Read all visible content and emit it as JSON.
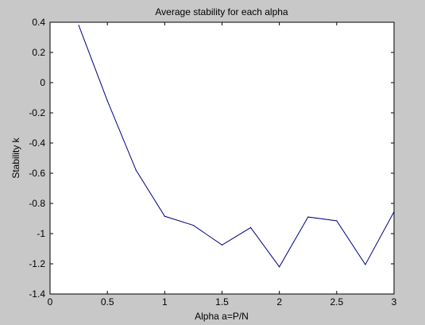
{
  "chart_data": {
    "type": "line",
    "title": "Average stability for each alpha",
    "xlabel": "Alpha a=P/N",
    "ylabel": "Stability k",
    "xlim": [
      0,
      3
    ],
    "ylim": [
      -1.4,
      0.4
    ],
    "xticks": [
      0,
      0.5,
      1,
      1.5,
      2,
      2.5,
      3
    ],
    "xtick_labels": [
      "0",
      "0.5",
      "1",
      "1.5",
      "2",
      "2.5",
      "3"
    ],
    "yticks": [
      0.4,
      0.2,
      0,
      -0.2,
      -0.4,
      -0.6,
      -0.8,
      -1,
      -1.2,
      -1.4
    ],
    "ytick_labels": [
      "0.4",
      "0.2",
      "0",
      "-0.2",
      "-0.4",
      "-0.6",
      "-0.8",
      "-1",
      "-1.2",
      "-1.4"
    ],
    "grid": false,
    "series": [
      {
        "x": [
          0.25,
          0.5,
          0.75,
          1.0,
          1.25,
          1.5,
          1.75,
          2.0,
          2.25,
          2.5,
          2.75,
          3.0
        ],
        "y": [
          0.38,
          -0.12,
          -0.58,
          -0.885,
          -0.945,
          -1.075,
          -0.96,
          -1.22,
          -0.89,
          -0.915,
          -1.205,
          -0.855
        ],
        "color": "#00007f"
      }
    ]
  }
}
